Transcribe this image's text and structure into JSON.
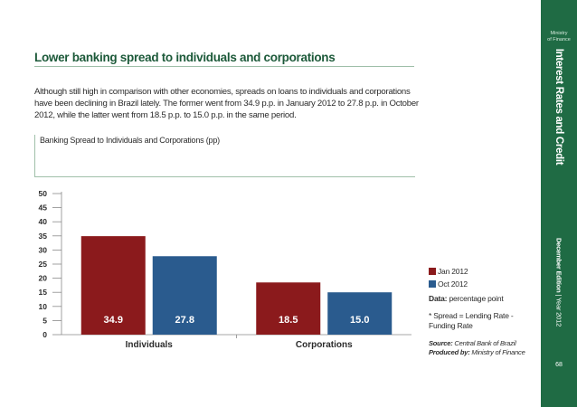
{
  "page": {
    "title": "Lower banking spread to individuals and corporations",
    "body": "Although still high in comparison with other economies, spreads on loans to individuals and corporations have been declining in Brazil lately. The former went from 34.9 p.p. in January 2012 to 27.8 p.p. in October 2012, while the latter went from 18.5 p.p. to 15.0 p.p. in the same period.",
    "page_number": "68"
  },
  "sidebar": {
    "ministry_line1": "Ministry",
    "ministry_line2": "of Finance",
    "section_title": "Interest Rates and Credit",
    "edition": "December Edition",
    "separator": "|",
    "year": "Year 2012",
    "color": "#1f6b44"
  },
  "notes": {
    "data_label": "Data:",
    "data_value": "percentage point",
    "spread_note": "* Spread = Lending Rate - Funding Rate"
  },
  "source": {
    "source_label": "Source:",
    "source_value": "Central Bank of Brazil",
    "produced_label": "Produced by:",
    "produced_value": "Ministry of Finance"
  },
  "chart_data": {
    "type": "bar",
    "title": "Banking Spread to Individuals and Corporations (pp)",
    "categories": [
      "Individuals",
      "Corporations"
    ],
    "series": [
      {
        "name": "Jan 2012",
        "values": [
          34.9,
          18.5
        ],
        "labels": [
          "34.9",
          "18.5"
        ],
        "color": "#8b1a1c"
      },
      {
        "name": "Oct 2012",
        "values": [
          27.8,
          15.0
        ],
        "labels": [
          "27.8",
          "15.0"
        ],
        "color": "#2a5b8e"
      }
    ],
    "yticks": [
      "0",
      "5",
      "10",
      "15",
      "20",
      "25",
      "30",
      "35",
      "40",
      "45",
      "50"
    ],
    "ylim": [
      0,
      50
    ],
    "xlabel": "",
    "ylabel": "",
    "grid": false,
    "legend": "right"
  }
}
